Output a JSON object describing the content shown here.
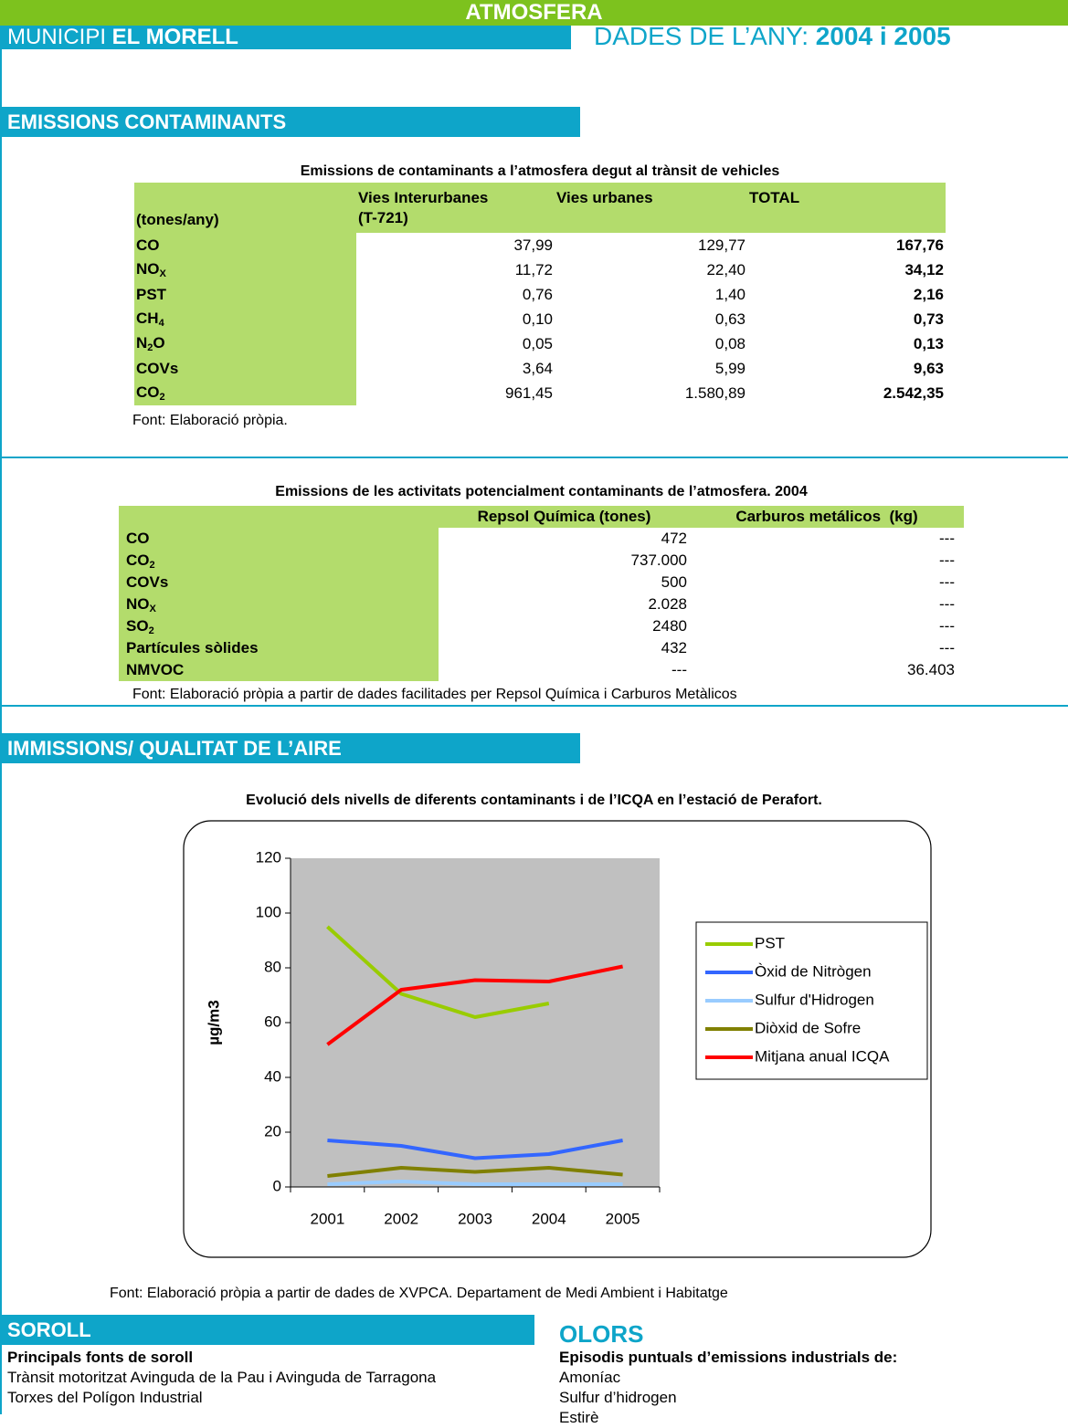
{
  "header": {
    "title": "ATMOSFERA",
    "municipi_label": "MUNICIPI",
    "municipi_name": "EL MORELL",
    "years_label": "DADES DE L’ANY:",
    "years": "2004 i 2005"
  },
  "emissions": {
    "title": "EMISSIONS CONTAMINANTS"
  },
  "table1": {
    "caption": "Emissions de contaminants a l’atmosfera degut al trànsit de vehicles",
    "unit": "(tones/any)",
    "columns": [
      [
        "Vies Interurbanes",
        "(T-721)"
      ],
      [
        "Vies urbanes"
      ],
      [
        "TOTAL"
      ]
    ],
    "rows": [
      {
        "label": "CO",
        "values": [
          "37,99",
          "129,77",
          "167,76"
        ]
      },
      {
        "label": "NO",
        "sub": "X",
        "values": [
          "11,72",
          "22,40",
          "34,12"
        ]
      },
      {
        "label": "PST",
        "values": [
          "0,76",
          "1,40",
          "2,16"
        ]
      },
      {
        "label": "CH",
        "sub": "4",
        "values": [
          "0,10",
          "0,63",
          "0,73"
        ]
      },
      {
        "label": "N",
        "sub": "2",
        "after": "O",
        "values": [
          "0,05",
          "0,08",
          "0,13"
        ]
      },
      {
        "label": "COVs",
        "values": [
          "3,64",
          "5,99",
          "9,63"
        ]
      },
      {
        "label": "CO",
        "sub": "2",
        "values": [
          "961,45",
          "1.580,89",
          "2.542,35"
        ]
      }
    ],
    "source": "Font: Elaboració pròpia."
  },
  "table2": {
    "caption": "Emissions de les activitats potencialment contaminants de l’atmosfera. 2004",
    "columns": [
      "Repsol Química (tones)",
      "Carburos metálicos  (kg)"
    ],
    "rows": [
      {
        "label": "CO",
        "values": [
          "472",
          "---"
        ]
      },
      {
        "label": "CO",
        "sub": "2",
        "values": [
          "737.000",
          "---"
        ]
      },
      {
        "label": "COVs",
        "values": [
          "500",
          "---"
        ]
      },
      {
        "label": "NO",
        "sub": "X",
        "values": [
          "2.028",
          "---"
        ]
      },
      {
        "label": "SO",
        "sub": "2",
        "values": [
          "2480",
          "---"
        ]
      },
      {
        "label": "Partícules sòlides",
        "values": [
          "432",
          "---"
        ]
      },
      {
        "label": "NMVOC",
        "values": [
          "---",
          "36.403"
        ]
      }
    ],
    "source": "Font: Elaboració pròpia a partir de dades facilitades per Repsol Química i Carburos Metàlicos"
  },
  "immissions": {
    "title": "IMMISSIONS/ QUALITAT DE L’AIRE"
  },
  "chart_data": {
    "type": "line",
    "title": "Evolució dels nivells de diferents contaminants i de l’ICQA en l’estació de Perafort.",
    "ylabel": "µg/m3",
    "categories": [
      "2001",
      "2002",
      "2003",
      "2004",
      "2005"
    ],
    "ylim": [
      0,
      120
    ],
    "yticks": [
      0,
      20,
      40,
      60,
      80,
      100,
      120
    ],
    "legend": "right",
    "series": [
      {
        "name": "PST",
        "color": "#99cc00",
        "values": [
          95,
          70.5,
          62,
          67,
          null
        ]
      },
      {
        "name": "Òxid de Nitrògen",
        "color": "#3366ff",
        "values": [
          17,
          15,
          10.5,
          12,
          17
        ]
      },
      {
        "name": "Sulfur d'Hidrogen",
        "color": "#99ccff",
        "values": [
          1,
          2,
          1,
          1,
          1
        ]
      },
      {
        "name": "Diòxid de Sofre",
        "color": "#808000",
        "values": [
          4,
          7,
          5.5,
          7,
          4.5
        ]
      },
      {
        "name": "Mitjana anual ICQA",
        "color": "#ff0000",
        "values": [
          52,
          72,
          75.5,
          75,
          80.5
        ]
      }
    ],
    "source": "Font: Elaboració pròpia a partir de dades de XVPCA. Departament de Medi Ambient i Habitatge"
  },
  "soroll": {
    "title": "SOROLL",
    "subtitle": "Principals fonts de soroll",
    "lines": [
      "Trànsit motoritzat Avinguda de la Pau i Avinguda de Tarragona",
      "Torxes del Polígon Industrial"
    ]
  },
  "olors": {
    "title": "OLORS",
    "subtitle": "Episodis puntuals d’emissions industrials de:",
    "items": [
      "Amoníac",
      "Sulfur d’hidrogen",
      "Estirè"
    ]
  }
}
